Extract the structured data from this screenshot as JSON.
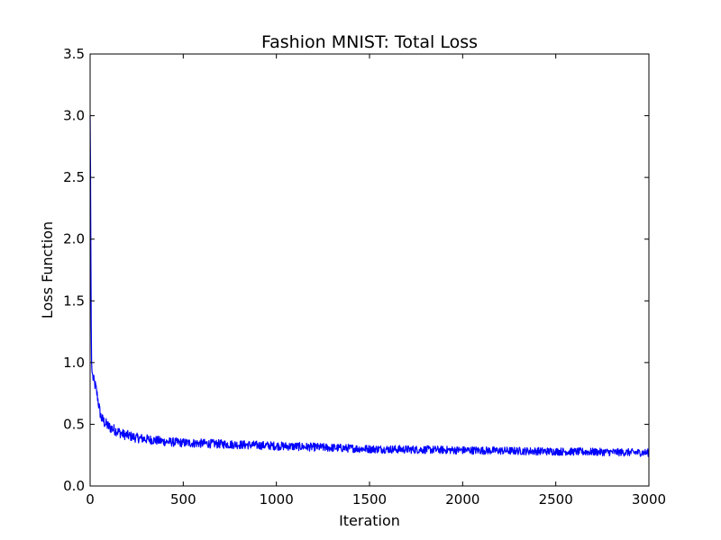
{
  "chart_data": {
    "type": "line",
    "title": "Fashion MNIST: Total Loss",
    "xlabel": "Iteration",
    "ylabel": "Loss Function",
    "xlim": [
      0,
      3000
    ],
    "ylim": [
      0,
      3.5
    ],
    "xticks": [
      0,
      500,
      1000,
      1500,
      2000,
      2500,
      3000
    ],
    "xtick_labels": [
      "0",
      "500",
      "1000",
      "1500",
      "2000",
      "2500",
      "3000"
    ],
    "yticks": [
      0,
      0.5,
      1.0,
      1.5,
      2.0,
      2.5,
      3.0,
      3.5
    ],
    "ytick_labels": [
      "0.0",
      "0.5",
      "1.0",
      "1.5",
      "2.0",
      "2.5",
      "3.0",
      "3.5"
    ],
    "grid": false,
    "series": [
      {
        "name": "Total Loss",
        "color": "#0000ff",
        "x": [
          0,
          2,
          4,
          6,
          8,
          10,
          15,
          20,
          30,
          40,
          50,
          60,
          70,
          80,
          100,
          125,
          150,
          175,
          200,
          250,
          300,
          350,
          400,
          450,
          500,
          600,
          700,
          800,
          900,
          1000,
          1100,
          1200,
          1300,
          1400,
          1500,
          1600,
          1700,
          1800,
          1900,
          2000,
          2100,
          2200,
          2300,
          2400,
          2500,
          2600,
          2700,
          2800,
          2900,
          3000
        ],
        "y": [
          3.0,
          2.6,
          1.9,
          1.3,
          1.0,
          0.93,
          0.88,
          0.85,
          0.8,
          0.72,
          0.62,
          0.55,
          0.53,
          0.51,
          0.48,
          0.46,
          0.44,
          0.42,
          0.41,
          0.39,
          0.38,
          0.37,
          0.36,
          0.355,
          0.35,
          0.345,
          0.34,
          0.335,
          0.33,
          0.325,
          0.32,
          0.315,
          0.31,
          0.305,
          0.3,
          0.298,
          0.296,
          0.294,
          0.292,
          0.29,
          0.288,
          0.286,
          0.284,
          0.282,
          0.28,
          0.278,
          0.276,
          0.274,
          0.272,
          0.27
        ]
      }
    ]
  }
}
